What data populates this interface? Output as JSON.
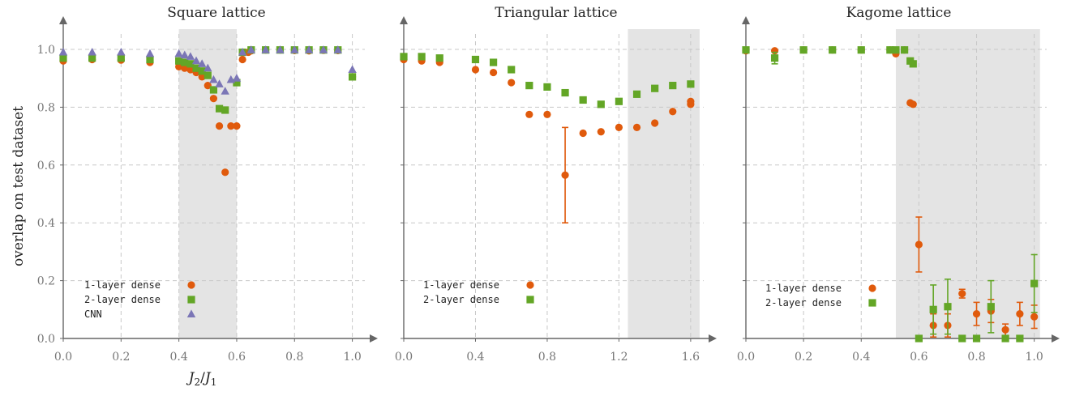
{
  "colors": {
    "dense1": "#e05a0c",
    "dense2": "#63a626",
    "cnn": "#7b76b6",
    "shade": "#e4e4e4",
    "axis": "#666666"
  },
  "ylabel": "overlap on test dataset",
  "xlabel_base": "J",
  "xlabel_sub_num": "2",
  "xlabel_slash": "/",
  "xlabel_sub_den": "1",
  "chart_data": [
    {
      "type": "scatter",
      "title": "Square lattice",
      "xlim": [
        0,
        1.06
      ],
      "ylim": [
        0,
        1.07
      ],
      "xticks": [
        "0.0",
        "0.2",
        "0.4",
        "0.6",
        "0.8",
        "1.0"
      ],
      "yticks": [
        "0.0",
        "0.2",
        "0.4",
        "0.6",
        "0.8",
        "1.0"
      ],
      "shaded_range": [
        0.4,
        0.6
      ],
      "legend_position": "bottom-left",
      "series": [
        {
          "name": "1-layer dense",
          "marker": "circle",
          "color_key": "dense1",
          "x": [
            0.0,
            0.1,
            0.2,
            0.3,
            0.4,
            0.42,
            0.44,
            0.46,
            0.48,
            0.5,
            0.52,
            0.54,
            0.56,
            0.58,
            0.6,
            0.62,
            0.64,
            0.65,
            0.7,
            0.75,
            0.8,
            0.85,
            0.9,
            0.95,
            1.0
          ],
          "y": [
            0.96,
            0.965,
            0.963,
            0.955,
            0.94,
            0.935,
            0.93,
            0.92,
            0.905,
            0.875,
            0.83,
            0.735,
            0.575,
            0.735,
            0.735,
            0.965,
            0.99,
            0.995,
            0.998,
            0.998,
            0.996,
            0.995,
            0.997,
            0.996,
            0.905
          ],
          "err": []
        },
        {
          "name": "2-layer dense",
          "marker": "square",
          "color_key": "dense2",
          "x": [
            0.0,
            0.1,
            0.2,
            0.3,
            0.4,
            0.42,
            0.44,
            0.46,
            0.48,
            0.5,
            0.52,
            0.54,
            0.56,
            0.6,
            0.62,
            0.65,
            0.7,
            0.75,
            0.8,
            0.85,
            0.9,
            0.95,
            1.0
          ],
          "y": [
            0.97,
            0.97,
            0.97,
            0.965,
            0.96,
            0.955,
            0.95,
            0.935,
            0.925,
            0.91,
            0.86,
            0.795,
            0.79,
            0.885,
            0.99,
            0.998,
            0.998,
            0.998,
            0.998,
            0.998,
            0.998,
            0.998,
            0.905
          ],
          "err": []
        },
        {
          "name": "CNN",
          "marker": "triangle",
          "color_key": "cnn",
          "x": [
            0.0,
            0.1,
            0.2,
            0.3,
            0.4,
            0.42,
            0.44,
            0.46,
            0.48,
            0.5,
            0.52,
            0.54,
            0.56,
            0.58,
            0.6,
            0.62,
            0.65,
            0.7,
            0.75,
            0.8,
            0.85,
            0.9,
            0.95,
            1.0
          ],
          "y": [
            0.99,
            0.99,
            0.99,
            0.985,
            0.985,
            0.98,
            0.975,
            0.96,
            0.95,
            0.935,
            0.895,
            0.88,
            0.855,
            0.895,
            0.9,
            0.99,
            0.998,
            0.998,
            0.998,
            0.998,
            0.998,
            0.998,
            0.998,
            0.93
          ],
          "err": []
        }
      ]
    },
    {
      "type": "scatter",
      "title": "Triangular lattice",
      "xlim": [
        0,
        1.7
      ],
      "ylim": [
        0,
        1.07
      ],
      "xticks": [
        "0.0",
        "0.4",
        "0.8",
        "1.2",
        "1.6"
      ],
      "yticks": [
        "0.0",
        "0.2",
        "0.4",
        "0.6",
        "0.8",
        "1.0"
      ],
      "shaded_range": [
        1.25,
        1.65
      ],
      "legend_position": "bottom-left",
      "series": [
        {
          "name": "1-layer dense",
          "marker": "circle",
          "color_key": "dense1",
          "x": [
            0.0,
            0.1,
            0.2,
            0.4,
            0.5,
            0.6,
            0.7,
            0.8,
            0.9,
            1.0,
            1.1,
            1.2,
            1.3,
            1.4,
            1.5,
            1.6,
            1.6
          ],
          "y": [
            0.965,
            0.96,
            0.955,
            0.93,
            0.92,
            0.885,
            0.775,
            0.775,
            0.565,
            0.71,
            0.715,
            0.73,
            0.73,
            0.745,
            0.785,
            0.81,
            0.82
          ],
          "err": [
            0,
            0,
            0,
            0,
            0,
            0,
            0,
            0,
            0.165,
            0,
            0,
            0,
            0,
            0,
            0,
            0,
            0
          ]
        },
        {
          "name": "2-layer dense",
          "marker": "square",
          "color_key": "dense2",
          "x": [
            0.0,
            0.1,
            0.2,
            0.4,
            0.5,
            0.6,
            0.7,
            0.8,
            0.9,
            1.0,
            1.1,
            1.2,
            1.3,
            1.4,
            1.5,
            1.6
          ],
          "y": [
            0.975,
            0.975,
            0.97,
            0.965,
            0.955,
            0.93,
            0.875,
            0.87,
            0.85,
            0.825,
            0.81,
            0.82,
            0.845,
            0.865,
            0.875,
            0.88
          ],
          "err": []
        }
      ]
    },
    {
      "type": "scatter",
      "title": "Kagome lattice",
      "xlim": [
        0,
        1.06
      ],
      "ylim": [
        0,
        1.07
      ],
      "xticks": [
        "0.0",
        "0.2",
        "0.4",
        "0.6",
        "0.8",
        "1.0"
      ],
      "yticks": [
        "0.0",
        "0.2",
        "0.4",
        "0.6",
        "0.8",
        "1.0"
      ],
      "shaded_range": [
        0.52,
        1.02
      ],
      "legend_position": "bottom-left",
      "series": [
        {
          "name": "1-layer dense",
          "marker": "circle",
          "color_key": "dense1",
          "x": [
            0.0,
            0.1,
            0.2,
            0.3,
            0.4,
            0.5,
            0.52,
            0.55,
            0.57,
            0.58,
            0.6,
            0.65,
            0.7,
            0.75,
            0.8,
            0.85,
            0.9,
            0.95,
            1.0
          ],
          "y": [
            0.995,
            0.995,
            0.998,
            0.998,
            0.998,
            0.998,
            0.985,
            0.998,
            0.815,
            0.81,
            0.325,
            0.045,
            0.045,
            0.155,
            0.085,
            0.095,
            0.03,
            0.085,
            0.075
          ],
          "err": [
            0,
            0,
            0,
            0,
            0,
            0,
            0,
            0,
            0,
            0,
            0.095,
            0.04,
            0.04,
            0.015,
            0.04,
            0.04,
            0.02,
            0.04,
            0.04
          ]
        },
        {
          "name": "2-layer dense",
          "marker": "square",
          "color_key": "dense2",
          "x": [
            0.0,
            0.1,
            0.2,
            0.3,
            0.4,
            0.5,
            0.52,
            0.55,
            0.57,
            0.58,
            0.6,
            0.65,
            0.7,
            0.75,
            0.8,
            0.85,
            0.9,
            0.95,
            1.0
          ],
          "y": [
            0.998,
            0.97,
            0.998,
            0.998,
            0.998,
            0.998,
            0.998,
            0.998,
            0.96,
            0.95,
            0.0,
            0.1,
            0.11,
            0.0,
            0.0,
            0.11,
            0.0,
            0.0,
            0.19
          ],
          "err": [
            0,
            0.02,
            0,
            0,
            0,
            0,
            0,
            0,
            0,
            0,
            0,
            0.085,
            0.095,
            0,
            0,
            0.09,
            0,
            0,
            0.1
          ]
        }
      ]
    }
  ]
}
